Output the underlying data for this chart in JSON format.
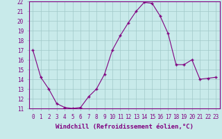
{
  "x": [
    0,
    1,
    2,
    3,
    4,
    5,
    6,
    7,
    8,
    9,
    10,
    11,
    12,
    13,
    14,
    15,
    16,
    17,
    18,
    19,
    20,
    21,
    22,
    23
  ],
  "y": [
    17.0,
    14.2,
    13.0,
    11.5,
    11.1,
    11.0,
    11.1,
    12.2,
    13.0,
    14.5,
    17.0,
    18.5,
    19.8,
    21.0,
    21.9,
    21.8,
    20.5,
    18.7,
    15.5,
    15.5,
    16.0,
    14.0,
    14.1,
    14.2
  ],
  "line_color": "#800080",
  "marker_color": "#800080",
  "bg_color": "#c8eaea",
  "grid_color": "#a0c8c8",
  "ylim": [
    11,
    22
  ],
  "yticks": [
    11,
    12,
    13,
    14,
    15,
    16,
    17,
    18,
    19,
    20,
    21,
    22
  ],
  "xticks": [
    0,
    1,
    2,
    3,
    4,
    5,
    6,
    7,
    8,
    9,
    10,
    11,
    12,
    13,
    14,
    15,
    16,
    17,
    18,
    19,
    20,
    21,
    22,
    23
  ],
  "tick_label_color": "#800080",
  "tick_label_fontsize": 5.5,
  "xlabel": "Windchill (Refroidissement éolien,°C)",
  "xlabel_fontsize": 6.5,
  "xlabel_color": "#800080"
}
